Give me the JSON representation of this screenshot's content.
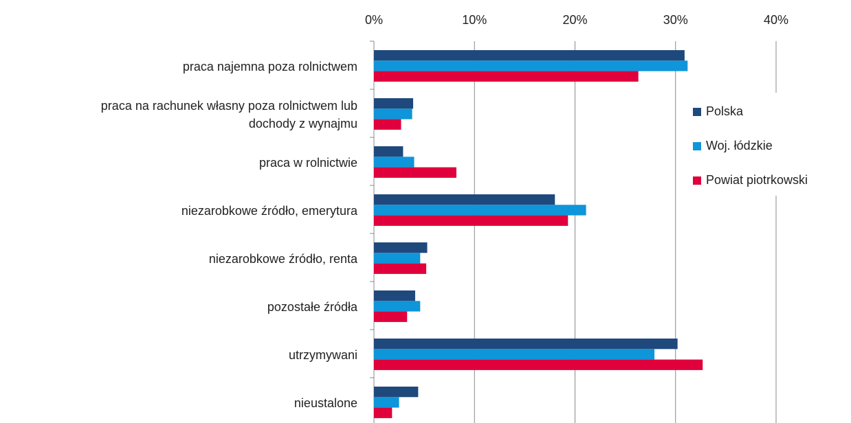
{
  "chart_data": {
    "type": "barh",
    "categories": [
      "praca najemna poza rolnictwem",
      "praca na rachunek własny poza rolnictwem lub dochody z wynajmu",
      "praca w rolnictwie",
      "niezarobkowe źródło, emerytura",
      "niezarobkowe źródło, renta",
      "pozostałe źródła",
      "utrzymywani",
      "nieustalone"
    ],
    "series": [
      {
        "name": "Polska",
        "color": "#1f497d",
        "values": [
          30.9,
          3.9,
          2.9,
          18.0,
          5.3,
          4.1,
          30.2,
          4.4
        ]
      },
      {
        "name": "Woj. łódzkie",
        "color": "#0f95d9",
        "values": [
          31.2,
          3.8,
          4.0,
          21.1,
          4.6,
          4.6,
          27.9,
          2.5
        ]
      },
      {
        "name": "Powiat piotrkowski",
        "color": "#e0003c",
        "values": [
          26.3,
          2.7,
          8.2,
          19.3,
          5.2,
          3.3,
          32.7,
          1.8
        ]
      }
    ],
    "xlim": [
      0,
      40
    ],
    "xticks": [
      {
        "value": 0,
        "label": "0%"
      },
      {
        "value": 10,
        "label": "10%"
      },
      {
        "value": 20,
        "label": "20%"
      },
      {
        "value": 30,
        "label": "30%"
      },
      {
        "value": 40,
        "label": "40%"
      }
    ],
    "grid": true,
    "legend": "right"
  }
}
